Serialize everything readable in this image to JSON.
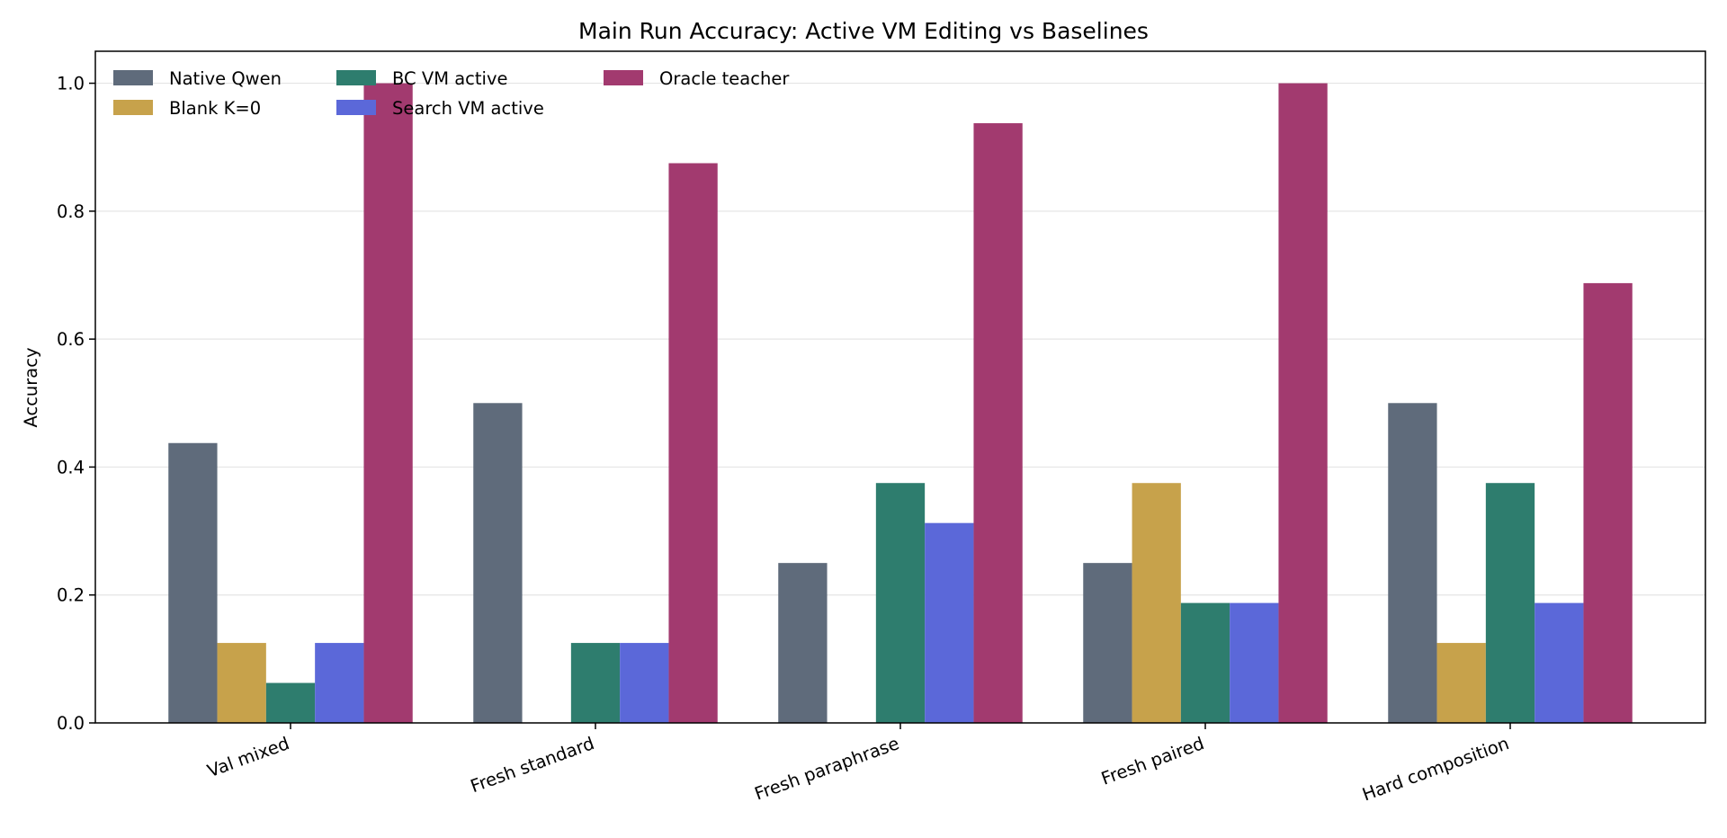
{
  "chart_data": {
    "type": "bar",
    "title": "Main Run Accuracy: Active VM Editing vs Baselines",
    "xlabel": "",
    "ylabel": "Accuracy",
    "ylim": [
      0,
      1.05
    ],
    "yticks": [
      0.0,
      0.2,
      0.4,
      0.6,
      0.8,
      1.0
    ],
    "ytick_labels": [
      "0.0",
      "0.2",
      "0.4",
      "0.6",
      "0.8",
      "1.0"
    ],
    "grid": "y",
    "legend_position": "top-left",
    "categories": [
      "Val mixed",
      "Fresh standard",
      "Fresh paraphrase",
      "Fresh paired",
      "Hard composition"
    ],
    "series": [
      {
        "name": "Native Qwen",
        "color": "#5f6b7b",
        "values": [
          0.4375,
          0.5,
          0.25,
          0.25,
          0.5
        ]
      },
      {
        "name": "Blank K=0",
        "color": "#c7a24b",
        "values": [
          0.125,
          0.0,
          0.0,
          0.375,
          0.125
        ]
      },
      {
        "name": "BC VM active",
        "color": "#2e7d6e",
        "values": [
          0.0625,
          0.125,
          0.375,
          0.1875,
          0.375
        ]
      },
      {
        "name": "Search VM active",
        "color": "#5b68d9",
        "values": [
          0.125,
          0.125,
          0.3125,
          0.1875,
          0.1875
        ]
      },
      {
        "name": "Oracle teacher",
        "color": "#a23a6f",
        "values": [
          1.0,
          0.875,
          0.9375,
          1.0,
          0.6875
        ]
      }
    ]
  }
}
